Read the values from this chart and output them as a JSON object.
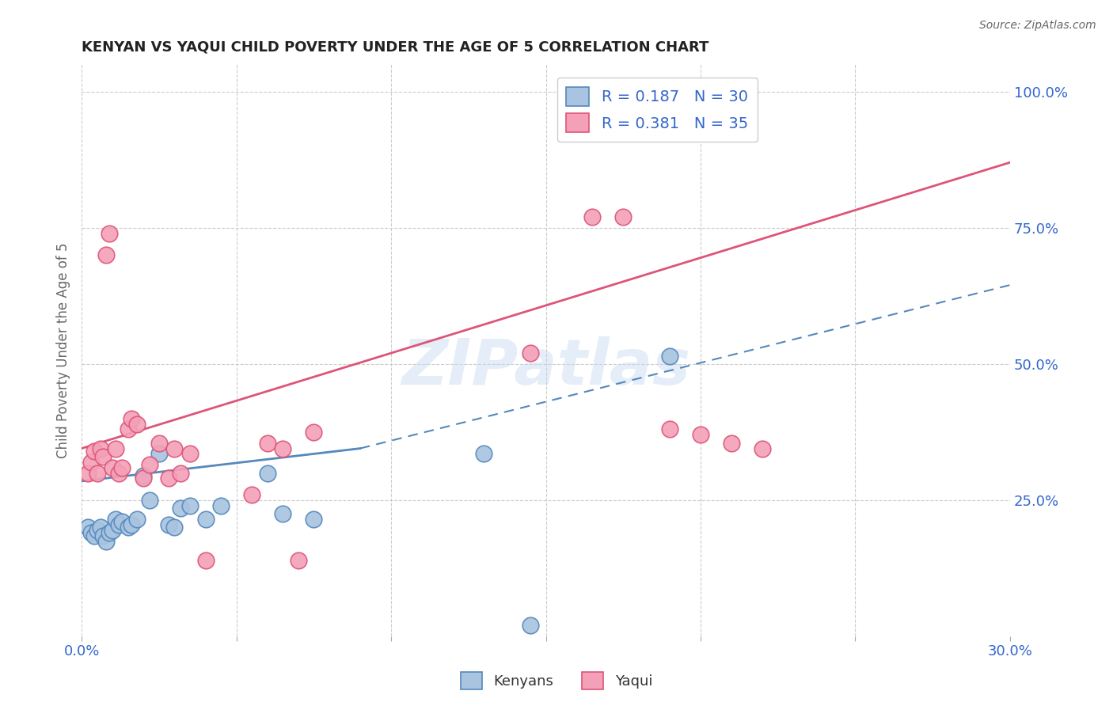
{
  "title": "KENYAN VS YAQUI CHILD POVERTY UNDER THE AGE OF 5 CORRELATION CHART",
  "source": "Source: ZipAtlas.com",
  "ylabel": "Child Poverty Under the Age of 5",
  "xlim": [
    0.0,
    0.3
  ],
  "ylim": [
    0.0,
    1.05
  ],
  "xticks": [
    0.0,
    0.05,
    0.1,
    0.15,
    0.2,
    0.25,
    0.3
  ],
  "xticklabels": [
    "0.0%",
    "",
    "",
    "",
    "",
    "",
    "30.0%"
  ],
  "yticks_right": [
    0.0,
    0.25,
    0.5,
    0.75,
    1.0
  ],
  "ytick_labels_right": [
    "",
    "25.0%",
    "50.0%",
    "75.0%",
    "100.0%"
  ],
  "legend_r_kenyan": "R = 0.187",
  "legend_n_kenyan": "N = 30",
  "legend_r_yaqui": "R = 0.381",
  "legend_n_yaqui": "N = 35",
  "kenyan_color": "#a8c4e0",
  "yaqui_color": "#f4a0b8",
  "kenyan_line_color": "#5588bb",
  "yaqui_line_color": "#dd5577",
  "background_color": "#ffffff",
  "grid_color": "#cccccc",
  "watermark_text": "ZIPatlas",
  "kenyan_x": [
    0.002,
    0.003,
    0.004,
    0.005,
    0.006,
    0.007,
    0.008,
    0.009,
    0.01,
    0.011,
    0.012,
    0.013,
    0.015,
    0.016,
    0.018,
    0.02,
    0.022,
    0.025,
    0.028,
    0.03,
    0.032,
    0.035,
    0.04,
    0.045,
    0.06,
    0.065,
    0.075,
    0.13,
    0.145,
    0.19
  ],
  "kenyan_y": [
    0.2,
    0.19,
    0.185,
    0.195,
    0.2,
    0.185,
    0.175,
    0.19,
    0.195,
    0.215,
    0.205,
    0.21,
    0.2,
    0.205,
    0.215,
    0.295,
    0.25,
    0.335,
    0.205,
    0.2,
    0.235,
    0.24,
    0.215,
    0.24,
    0.3,
    0.225,
    0.215,
    0.335,
    0.02,
    0.515
  ],
  "yaqui_x": [
    0.002,
    0.003,
    0.004,
    0.005,
    0.006,
    0.007,
    0.008,
    0.009,
    0.01,
    0.011,
    0.012,
    0.013,
    0.015,
    0.016,
    0.018,
    0.02,
    0.022,
    0.025,
    0.028,
    0.03,
    0.032,
    0.035,
    0.04,
    0.055,
    0.06,
    0.065,
    0.07,
    0.075,
    0.145,
    0.165,
    0.175,
    0.19,
    0.2,
    0.21,
    0.22
  ],
  "yaqui_y": [
    0.3,
    0.32,
    0.34,
    0.3,
    0.345,
    0.33,
    0.7,
    0.74,
    0.31,
    0.345,
    0.3,
    0.31,
    0.38,
    0.4,
    0.39,
    0.29,
    0.315,
    0.355,
    0.29,
    0.345,
    0.3,
    0.335,
    0.14,
    0.26,
    0.355,
    0.345,
    0.14,
    0.375,
    0.52,
    0.77,
    0.77,
    0.38,
    0.37,
    0.355,
    0.345
  ],
  "yaqui_trend": [
    0.0,
    0.3,
    0.345,
    0.87
  ],
  "kenyan_trend_solid": [
    0.0,
    0.09,
    0.285,
    0.345
  ],
  "kenyan_trend_dashed": [
    0.09,
    0.3,
    0.345,
    0.645
  ]
}
